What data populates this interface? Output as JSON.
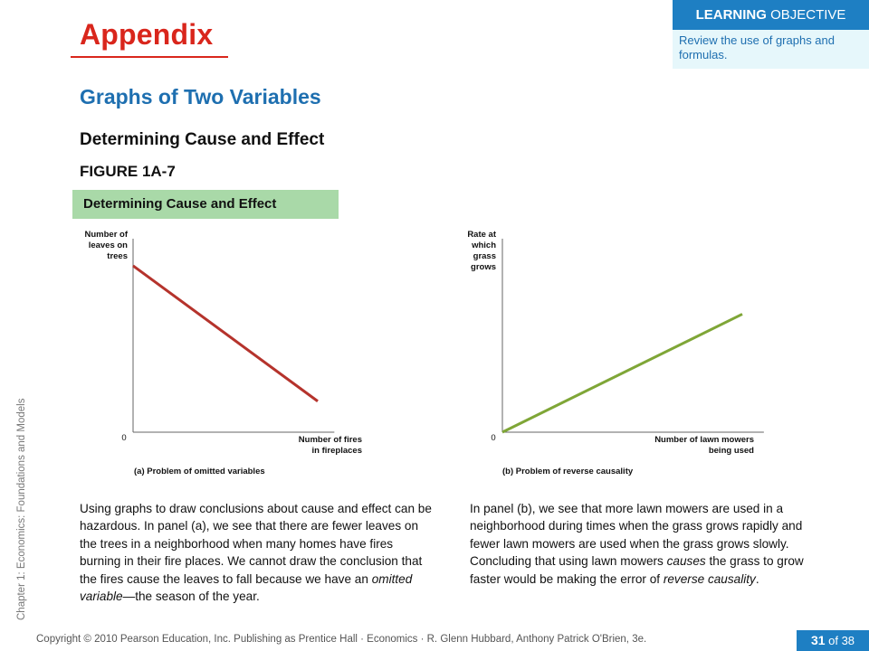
{
  "slide": {
    "title": "Appendix",
    "learning_objective": {
      "header_bold": "LEARNING",
      "header_rest": " OBJECTIVE",
      "text": "Review the use of graphs and formulas."
    },
    "section_title": "Graphs of Two Variables",
    "subtitle": "Determining Cause and Effect",
    "figure_label": "FIGURE 1A-7",
    "figure_tab": "Determining Cause and Effect",
    "paragraph_a": [
      {
        "text": "Using graphs to draw conclusions about cause and effect can be hazardous. In panel (a), we see that there are fewer leaves on the trees in a neighborhood when many homes have fires burning in their fire places. We cannot draw the conclusion that the fires cause the leaves to fall because we have an ",
        "italic": false
      },
      {
        "text": "omitted variable",
        "italic": true
      },
      {
        "text": "—the season of the year.",
        "italic": false
      }
    ],
    "paragraph_b": [
      {
        "text": "In panel (b), we see that more lawn mowers are used in a neighborhood during times when the grass grows rapidly and fewer lawn mowers are used when the grass grows slowly. Concluding that using lawn mowers ",
        "italic": false
      },
      {
        "text": "causes",
        "italic": true
      },
      {
        "text": " the grass to grow faster would be making the error of ",
        "italic": false
      },
      {
        "text": "reverse causality",
        "italic": true
      },
      {
        "text": ".",
        "italic": false
      }
    ],
    "side_label": "Chapter 1: Economics:  Foundations and Models",
    "footer": "Copyright © 2010 Pearson Education, Inc. Publishing as Prentice Hall · Economics · R. Glenn Hubbard, Anthony Patrick O'Brien, 3e.",
    "page_current": "31",
    "page_total": " of 38",
    "colors": {
      "title_red": "#d9261c",
      "accent_blue": "#1e7fc3",
      "tab_green": "#a9d9a8",
      "line_a": "#b5332c",
      "line_b": "#7fa637"
    }
  },
  "chart_data": [
    {
      "type": "line",
      "panel": "(a) Problem of omitted variables",
      "ylabel": [
        "Number of",
        "leaves on",
        "trees"
      ],
      "xlabel": [
        "Number of fires",
        "in fireplaces"
      ],
      "origin_label": "0",
      "series": [
        {
          "points": [
            [
              0,
              0.86
            ],
            [
              1,
              0.16
            ]
          ]
        }
      ],
      "xlim": [
        0,
        1.09
      ],
      "ylim": [
        0,
        1
      ]
    },
    {
      "type": "line",
      "panel": "(b) Problem of reverse causality",
      "ylabel": [
        "Rate at",
        "which",
        "grass",
        "grows"
      ],
      "xlabel": [
        "Number of lawn mowers",
        "being used"
      ],
      "origin_label": "0",
      "series": [
        {
          "points": [
            [
              0,
              0
            ],
            [
              1,
              0.61
            ]
          ]
        }
      ],
      "xlim": [
        0,
        1.09
      ],
      "ylim": [
        0,
        1
      ]
    }
  ]
}
